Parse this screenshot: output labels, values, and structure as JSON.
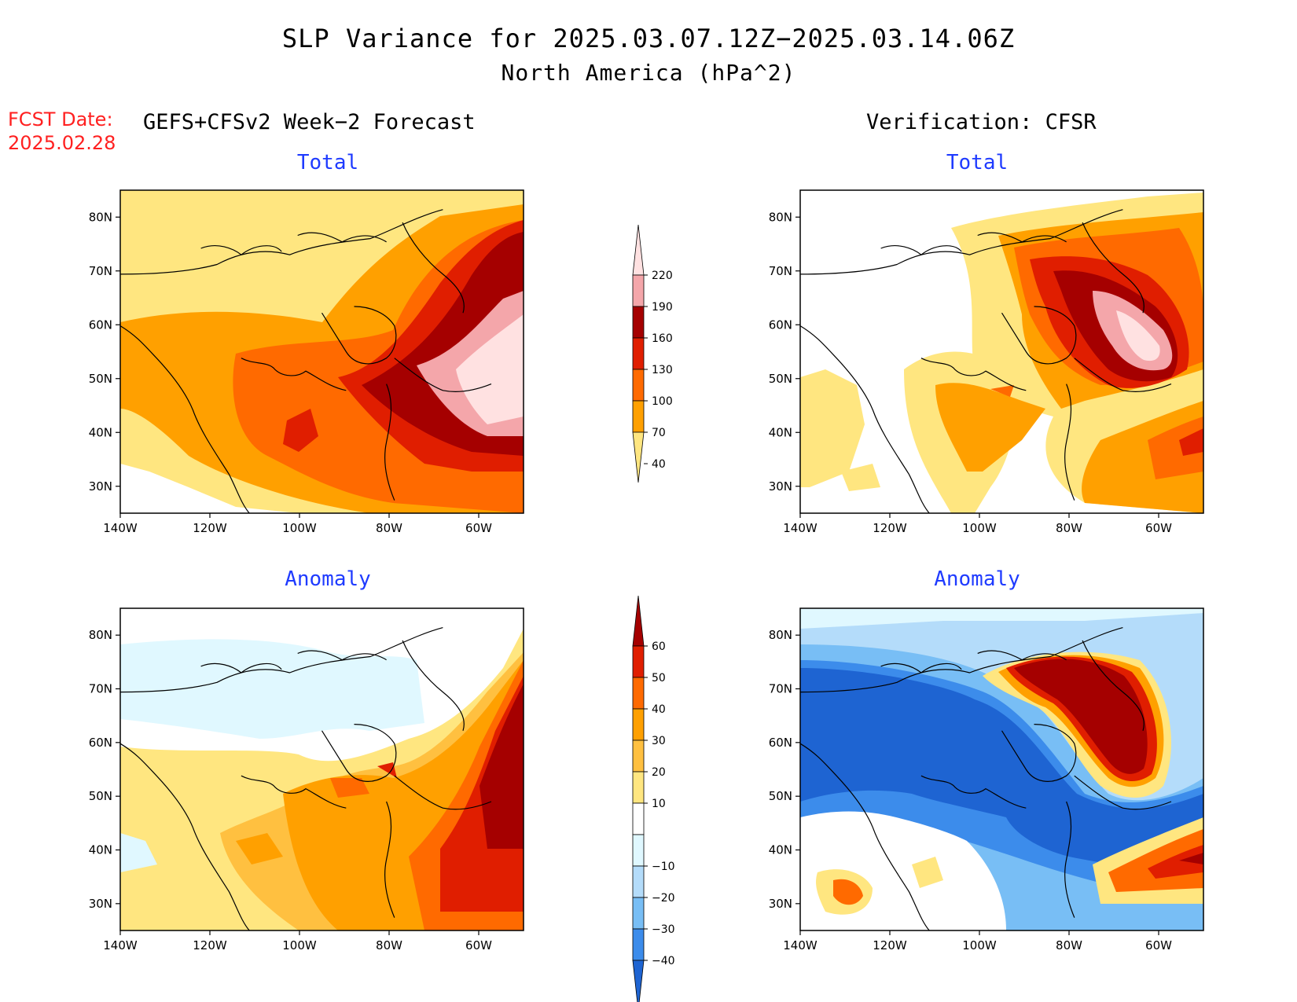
{
  "title": "SLP Variance for 2025.03.07.12Z−2025.03.14.06Z",
  "subtitle": "North America (hPa^2)",
  "fcst_date_label": "FCST Date:",
  "fcst_date_value": "2025.02.28",
  "forecast_header": "GEFS+CFSv2 Week−2 Forecast",
  "verification_header": "Verification: CFSR",
  "panels": [
    {
      "title": "Total"
    },
    {
      "title": "Total"
    },
    {
      "title": "Anomaly"
    },
    {
      "title": "Anomaly"
    }
  ],
  "lon_ticks": [
    "140W",
    "120W",
    "100W",
    "80W",
    "60W"
  ],
  "lat_ticks": [
    "80N",
    "70N",
    "60N",
    "50N",
    "40N",
    "30N"
  ],
  "map_extent": {
    "lon": [
      -140,
      -50
    ],
    "lat": [
      25,
      85
    ]
  },
  "total_colorbar": {
    "levels": [
      "40",
      "70",
      "100",
      "130",
      "160",
      "190",
      "220"
    ],
    "colors": [
      "#ffe680",
      "#ffa000",
      "#ff6a00",
      "#e01e00",
      "#a50000",
      "#f4a6aa",
      "#ffe1e1"
    ]
  },
  "anomaly_colorbar": {
    "levels": [
      "60",
      "50",
      "40",
      "30",
      "20",
      "10",
      "−10",
      "−20",
      "−30",
      "−40"
    ],
    "colors": [
      "#a50000",
      "#e01e00",
      "#ff6a00",
      "#ffa000",
      "#ffc040",
      "#ffe680",
      "#ffffff",
      "#e0f8ff",
      "#b4dcfa",
      "#78bef5",
      "#3c8ceb",
      "#1e64d2"
    ]
  }
}
